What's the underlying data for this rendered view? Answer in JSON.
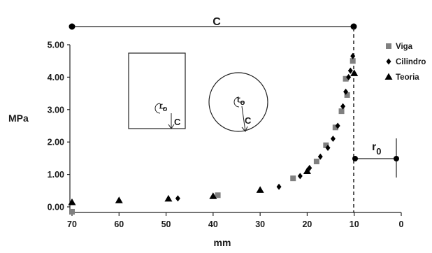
{
  "chart_data": {
    "type": "scatter",
    "xlabel": "mm",
    "ylabel": "MPa",
    "xlim": [
      70,
      0
    ],
    "ylim": [
      0,
      5
    ],
    "x_reversed": true,
    "x_ticks": [
      "70",
      "60",
      "50",
      "40",
      "30",
      "20",
      "10",
      "0"
    ],
    "y_ticks": [
      "0.00",
      "1.00",
      "2.00",
      "3.00",
      "4.00",
      "5.00"
    ],
    "grid": false,
    "legend_position": "top-right",
    "colors": {
      "Viga": "#808080",
      "Cilindro": "#000000",
      "Teoria": "#000000"
    },
    "series": [
      {
        "name": "Viga",
        "marker": "square",
        "points": [
          [
            70,
            -0.15
          ],
          [
            39,
            0.36
          ],
          [
            23,
            0.88
          ],
          [
            18,
            1.4
          ],
          [
            16,
            1.9
          ],
          [
            14,
            2.45
          ],
          [
            12.7,
            2.95
          ],
          [
            11.5,
            3.45
          ],
          [
            11.8,
            3.95
          ],
          [
            10.3,
            4.5
          ]
        ]
      },
      {
        "name": "Cilindro",
        "marker": "diamond",
        "points": [
          [
            47.5,
            0.26
          ],
          [
            26,
            0.62
          ],
          [
            21.5,
            0.95
          ],
          [
            19.5,
            1.2
          ],
          [
            17.2,
            1.55
          ],
          [
            15.6,
            1.82
          ],
          [
            14.5,
            2.1
          ],
          [
            13.5,
            2.5
          ],
          [
            12.4,
            3.1
          ],
          [
            11.8,
            3.55
          ],
          [
            11.2,
            4.0
          ],
          [
            10.8,
            4.2
          ],
          [
            10.3,
            4.65
          ]
        ]
      },
      {
        "name": "Teoria",
        "marker": "triangle",
        "points": [
          [
            70,
            0.14
          ],
          [
            60,
            0.2
          ],
          [
            49.5,
            0.25
          ],
          [
            40,
            0.33
          ],
          [
            30,
            0.52
          ],
          [
            20,
            1.1
          ],
          [
            10,
            4.12
          ]
        ]
      }
    ],
    "annotations": {
      "top_span_label": "C",
      "r0_span_label": "r",
      "r0_span_subscript": "0",
      "square_r_label": "r",
      "square_r_subscript": "o",
      "square_c_label": "C",
      "circle_r_label": "r",
      "circle_r_subscript": "o",
      "circle_c_label": "C"
    }
  }
}
